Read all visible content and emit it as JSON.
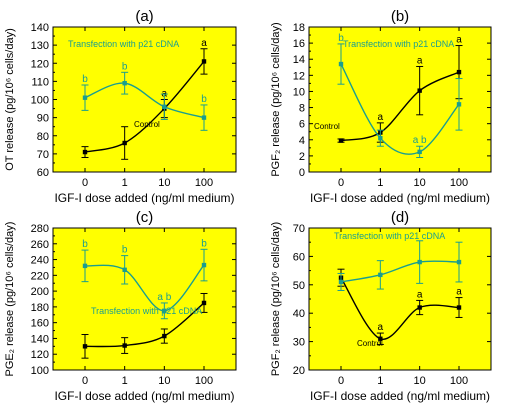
{
  "colors": {
    "panel_bg": "#ffff00",
    "control": "#000000",
    "transfection": "#1a9e8f",
    "axis": "#000000"
  },
  "x_tick_labels": [
    "0",
    "1",
    "10",
    "100"
  ],
  "chart_data": [
    {
      "type": "line",
      "panel_label": "(a)",
      "xlabel": "IGF-I dose added (ng/ml medium)",
      "ylabel": "OT release (pg/10⁶ cells/day)",
      "ylim": [
        60,
        140
      ],
      "yticks": [
        60,
        70,
        80,
        90,
        100,
        110,
        120,
        130,
        140
      ],
      "x": [
        "0",
        "1",
        "10",
        "100"
      ],
      "series_label_anchor": {
        "control": 1,
        "transfection": 0
      },
      "series": [
        {
          "name": "Control",
          "key": "control",
          "values": [
            71,
            76,
            95,
            121
          ],
          "errors": [
            3,
            9,
            5,
            7
          ],
          "letters": [
            "",
            "",
            "a",
            "a"
          ]
        },
        {
          "name": "Transfection with p21 cDNA",
          "key": "transfection",
          "values": [
            101,
            109,
            96,
            90
          ],
          "errors": [
            7,
            6,
            7,
            7
          ],
          "letters": [
            "b",
            "b",
            "",
            "b"
          ]
        }
      ],
      "annotation_texts": {
        "control": "Control",
        "transfection": "Transfection with p21 cDNA"
      }
    },
    {
      "type": "line",
      "panel_label": "(b)",
      "xlabel": "IGF-I dose added (ng/ml medium)",
      "ylabel": "PGF₂ release (pg/10⁶ cells/day)",
      "ylim": [
        0,
        18
      ],
      "yticks": [
        0,
        2,
        4,
        6,
        8,
        10,
        12,
        14,
        16,
        18
      ],
      "x": [
        "0",
        "1",
        "10",
        "100"
      ],
      "series": [
        {
          "name": "Control",
          "key": "control",
          "values": [
            3.9,
            4.9,
            10.1,
            12.4
          ],
          "errors": [
            0.2,
            1.2,
            3.0,
            3.3
          ],
          "letters": [
            "",
            "a",
            "a",
            "a"
          ]
        },
        {
          "name": "Transfection with p21 cDNA",
          "key": "transfection",
          "values": [
            13.4,
            4.2,
            2.5,
            8.4
          ],
          "errors": [
            2.5,
            1.0,
            0.7,
            3.2
          ],
          "letters": [
            "b",
            "",
            "a b",
            ""
          ]
        }
      ],
      "annotation_texts": {
        "control": "Control",
        "transfection": "Transfection with p21 cDNA"
      }
    },
    {
      "type": "line",
      "panel_label": "(c)",
      "xlabel": "IGF-I dose added (ng/ml medium)",
      "ylabel": "PGE₂ release (pg/10⁶ cells/day)",
      "ylim": [
        100,
        280
      ],
      "yticks": [
        100,
        120,
        140,
        160,
        180,
        200,
        220,
        240,
        260,
        280
      ],
      "x": [
        "0",
        "1",
        "10",
        "100"
      ],
      "series": [
        {
          "name": "Control",
          "key": "control",
          "values": [
            130,
            131,
            143,
            185
          ],
          "errors": [
            15,
            10,
            9,
            12
          ],
          "letters": [
            "",
            "",
            "",
            ""
          ]
        },
        {
          "name": "Transfection with p21 cDNA",
          "key": "transfection",
          "values": [
            232,
            227,
            175,
            233
          ],
          "errors": [
            20,
            18,
            10,
            20
          ],
          "letters": [
            "b",
            "b",
            "a b",
            "b"
          ]
        }
      ],
      "annotation_texts": {
        "control": "",
        "transfection": "Transfection with p21 cDNA"
      }
    },
    {
      "type": "line",
      "panel_label": "(d)",
      "xlabel": "IGF-I dose added (ng/ml medium)",
      "ylabel": "PGF₂ release (pg/10⁶ cells/day)",
      "ylim": [
        20,
        70
      ],
      "yticks": [
        20,
        30,
        40,
        50,
        60,
        70
      ],
      "x": [
        "0",
        "1",
        "10",
        "100"
      ],
      "series": [
        {
          "name": "Control",
          "key": "control",
          "values": [
            52.5,
            31,
            42,
            42
          ],
          "errors": [
            3,
            2,
            2.5,
            3.5
          ],
          "letters": [
            "",
            "a",
            "a",
            "a"
          ]
        },
        {
          "name": "Transfection with p21 cDNA",
          "key": "transfection",
          "values": [
            51,
            53.5,
            58,
            58
          ],
          "errors": [
            3,
            5,
            7.5,
            7
          ],
          "letters": [
            "",
            "",
            "",
            ""
          ]
        }
      ],
      "annotation_texts": {
        "control": "Control",
        "transfection": "Transfection with p21 cDNA"
      }
    }
  ]
}
